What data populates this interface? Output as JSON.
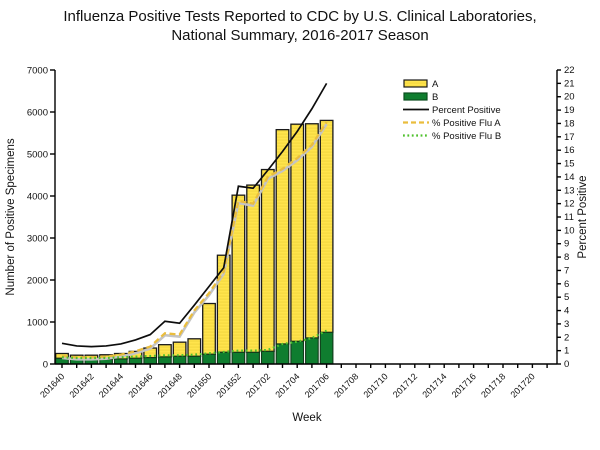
{
  "title": {
    "line1": "Influenza Positive Tests Reported to CDC by U.S. Clinical Laboratories,",
    "line2": "National Summary, 2016-2017 Season"
  },
  "legend": {
    "items": [
      {
        "label": "A",
        "type": "bar",
        "color": "#ffe44c",
        "border": "#1a1a1a"
      },
      {
        "label": "B",
        "type": "bar",
        "color": "#0f7d2f",
        "border": "#0a4d1e"
      },
      {
        "label": "Percent Positive",
        "type": "line",
        "style": "solid",
        "color": "#0d0d0d"
      },
      {
        "label": "% Positive Flu A",
        "type": "line",
        "style": "dashed",
        "color": "#eabd3d"
      },
      {
        "label": "% Positive Flu B",
        "type": "line",
        "style": "dotted",
        "color": "#4ec02c"
      }
    ]
  },
  "chart_data": {
    "type": "bar",
    "title": "Influenza Positive Tests Reported to CDC by U.S. Clinical Laboratories, National Summary, 2016-2017 Season",
    "xlabel": "Week",
    "ylabel_left": "Number of Positive Specimens",
    "ylabel_right": "Percent Positive",
    "ylim_left": [
      0,
      7000
    ],
    "ylim_right": [
      0,
      22
    ],
    "y_ticks_left": [
      0,
      1000,
      2000,
      3000,
      4000,
      5000,
      6000,
      7000
    ],
    "y_ticks_right": [
      0,
      1,
      2,
      3,
      4,
      5,
      6,
      7,
      8,
      9,
      10,
      11,
      12,
      13,
      14,
      15,
      16,
      17,
      18,
      19,
      20,
      21,
      22
    ],
    "x_tick_labels": [
      "201640",
      "201642",
      "201644",
      "201646",
      "201648",
      "201650",
      "201652",
      "201702",
      "201704",
      "201706",
      "201708",
      "201710",
      "201712",
      "201714",
      "201716",
      "201718",
      "201720"
    ],
    "categories": [
      "201640",
      "201641",
      "201642",
      "201643",
      "201644",
      "201645",
      "201646",
      "201647",
      "201648",
      "201649",
      "201650",
      "201651",
      "201652",
      "201701",
      "201702",
      "201703",
      "201704",
      "201705",
      "201706"
    ],
    "bar_series": [
      {
        "name": "A",
        "color": "#ffe44c",
        "values": [
          115,
          99,
          99,
          109,
          131,
          165,
          229,
          293,
          338,
          418,
          1210,
          2312,
          3744,
          3984,
          4330,
          5104,
          5172,
          5101,
          5048
        ]
      },
      {
        "name": "B",
        "color": "#0f7d2f",
        "values": [
          135,
          111,
          111,
          111,
          119,
          135,
          151,
          167,
          182,
          182,
          230,
          278,
          276,
          276,
          300,
          476,
          538,
          619,
          752
        ]
      }
    ],
    "line_series": [
      {
        "name": "Percent Positive",
        "style": "solid",
        "color": "#0d0d0d",
        "values": [
          1.55,
          1.35,
          1.3,
          1.35,
          1.5,
          1.8,
          2.2,
          3.2,
          3.05,
          4.4,
          5.8,
          7.2,
          13.3,
          13.15,
          14.5,
          15.9,
          17.4,
          19.1,
          21.0
        ]
      },
      {
        "name": "% Positive Flu A",
        "style": "dashed",
        "color": "#eabd3d",
        "values": [
          0.6,
          0.5,
          0.5,
          0.55,
          0.7,
          0.95,
          1.3,
          2.3,
          2.2,
          4.0,
          5.3,
          6.9,
          12.2,
          12.0,
          14.0,
          14.6,
          15.4,
          16.4,
          18.1
        ]
      },
      {
        "name": "% Positive Flu B",
        "style": "dotted",
        "color": "#4ec02c",
        "values": [
          0.5,
          0.45,
          0.45,
          0.45,
          0.5,
          0.55,
          0.6,
          0.65,
          0.65,
          0.7,
          0.8,
          0.9,
          1.0,
          1.0,
          1.05,
          1.5,
          1.67,
          1.94,
          2.5
        ]
      }
    ],
    "legend_position": "upper right",
    "grid": false,
    "x_axis_extends_to_label": "201720"
  }
}
